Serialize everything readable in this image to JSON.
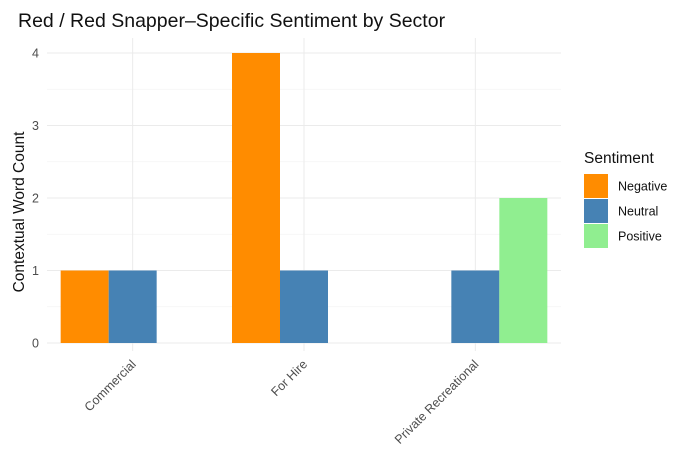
{
  "chart_data": {
    "type": "bar",
    "title": "Red / Red Snapper–Specific Sentiment by Sector",
    "xlabel": "",
    "ylabel": "Contextual Word Count",
    "categories": [
      "Commercial",
      "For Hire",
      "Private Recreational"
    ],
    "series": [
      {
        "name": "Negative",
        "color": "#ff8c00",
        "values": [
          1,
          4,
          0
        ]
      },
      {
        "name": "Neutral",
        "color": "#4682b4",
        "values": [
          1,
          1,
          1
        ]
      },
      {
        "name": "Positive",
        "color": "#90ee90",
        "values": [
          0,
          0,
          2
        ]
      }
    ],
    "ylim": [
      0,
      4.2
    ],
    "yticks": [
      "0",
      "1",
      "2",
      "3",
      "4"
    ],
    "grid": true,
    "legend": {
      "title": "Sentiment",
      "position": "right"
    }
  }
}
